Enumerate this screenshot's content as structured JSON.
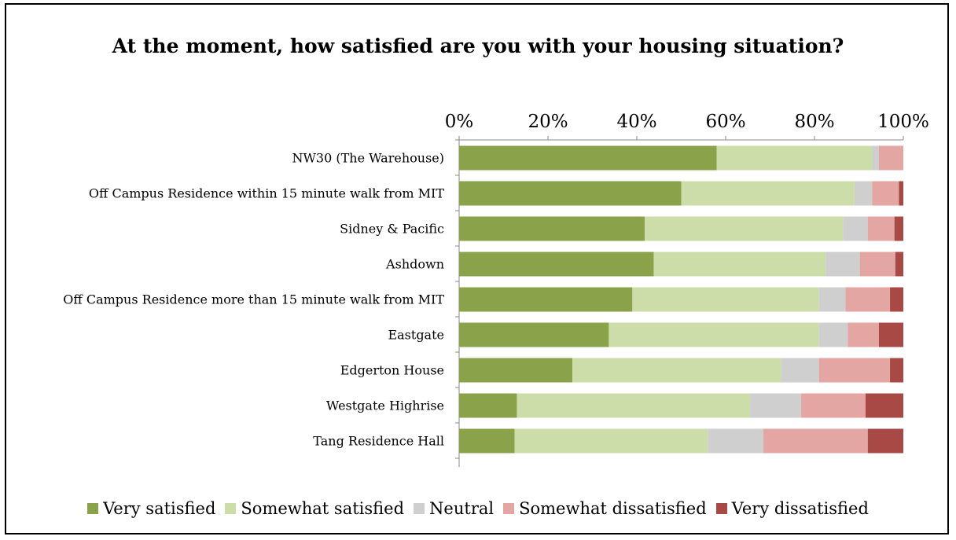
{
  "chart_data": {
    "type": "bar",
    "orientation": "horizontal",
    "stacked": "percent",
    "title": "At the moment, how satisfied are you with your housing situation?",
    "xlim": [
      0,
      100
    ],
    "x_ticks": [
      "0%",
      "20%",
      "40%",
      "60%",
      "80%",
      "100%"
    ],
    "x_axis_position": "top",
    "legend_position": "bottom",
    "grid": false,
    "categories": [
      "NW30 (The Warehouse)",
      "Off Campus Residence within 15 minute walk from MIT",
      "Sidney & Pacific",
      "Ashdown",
      "Off Campus Residence more than 15 minute walk from MIT",
      "Eastgate",
      "Edgerton House",
      "Westgate Highrise",
      "Tang Residence Hall"
    ],
    "series": [
      {
        "name": "Very satisfied",
        "color": "#8aa34a",
        "values": [
          58,
          50,
          41.8,
          43.8,
          39,
          33.7,
          25.5,
          13,
          12.5
        ]
      },
      {
        "name": "Somewhat satisfied",
        "color": "#cddda9",
        "values": [
          35,
          39,
          44.6,
          38.7,
          42,
          47.3,
          47,
          52.5,
          43.5
        ]
      },
      {
        "name": "Neutral",
        "color": "#cfcfcf",
        "values": [
          1.5,
          4,
          5.6,
          7.7,
          6,
          6.5,
          8.5,
          11.5,
          12.5
        ]
      },
      {
        "name": "Somewhat dissatisfied",
        "color": "#e3a6a3",
        "values": [
          5.5,
          6,
          6,
          8,
          10,
          7,
          16,
          14.5,
          23.5
        ]
      },
      {
        "name": "Very dissatisfied",
        "color": "#a94946",
        "values": [
          0,
          1,
          2,
          1.8,
          3,
          5.5,
          3,
          8.5,
          8
        ]
      }
    ]
  }
}
